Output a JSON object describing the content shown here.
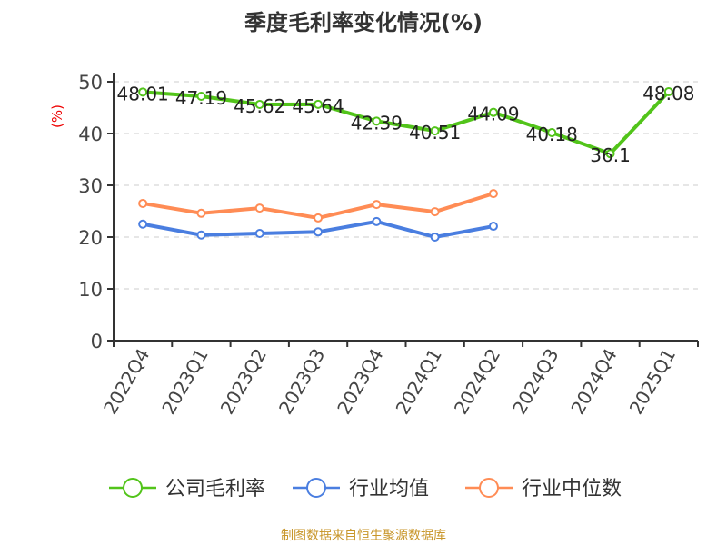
{
  "chart_data": {
    "type": "line",
    "title": "季度毛利率变化情况(%)",
    "ylabel": "(%)",
    "xlabel": "",
    "ylim": [
      0,
      50
    ],
    "yticks": [
      0,
      10,
      20,
      30,
      40,
      50
    ],
    "categories": [
      "2022Q4",
      "2023Q1",
      "2023Q2",
      "2023Q3",
      "2023Q4",
      "2024Q1",
      "2024Q2",
      "2024Q3",
      "2024Q4",
      "2025Q1"
    ],
    "series": [
      {
        "name": "公司毛利率",
        "color": "#52c41a",
        "values": [
          48.01,
          47.19,
          45.62,
          45.64,
          42.39,
          40.51,
          44.09,
          40.18,
          36.1,
          48.08
        ],
        "labels": [
          "48.01",
          "47.19",
          "45.62",
          "45.64",
          "42.39",
          "40.51",
          "44.09",
          "40.18",
          "36.1",
          "48.08"
        ]
      },
      {
        "name": "行业均值",
        "color": "#4a7ee0",
        "values": [
          22.5,
          20.4,
          20.7,
          21.0,
          23.0,
          20.0,
          22.1,
          null,
          null,
          null
        ]
      },
      {
        "name": "行业中位数",
        "color": "#ff8c55",
        "values": [
          26.5,
          24.6,
          25.6,
          23.7,
          26.3,
          24.9,
          28.4,
          null,
          null,
          null
        ]
      }
    ],
    "grid": true,
    "legend": "bottom",
    "source": "制图数据来自恒生聚源数据库"
  }
}
